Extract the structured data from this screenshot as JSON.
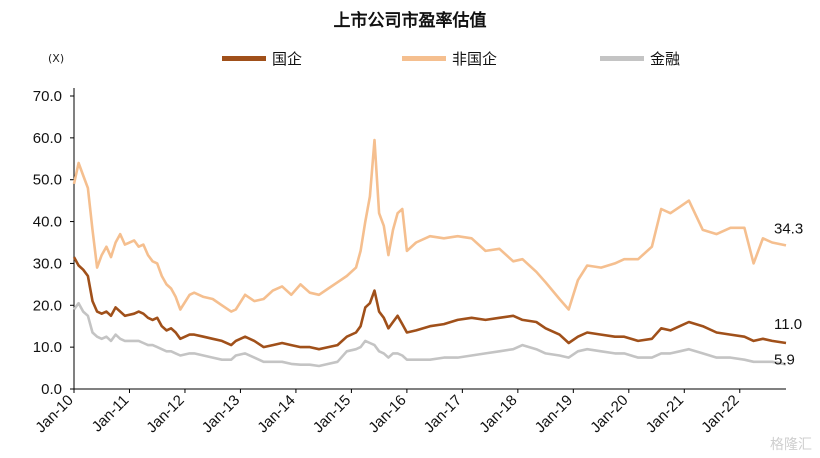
{
  "chart_data": {
    "type": "line",
    "title": "上市公司市盈率估值",
    "y_unit": "(X)",
    "ylim": [
      0,
      70
    ],
    "y_ticks": [
      "0.0",
      "10.0",
      "20.0",
      "30.0",
      "40.0",
      "50.0",
      "60.0",
      "70.0"
    ],
    "x_range": [
      "2010-01",
      "2022-11"
    ],
    "x_ticks": [
      "Jan-10",
      "Jan-11",
      "Jan-12",
      "Jan-13",
      "Jan-14",
      "Jan-15",
      "Jan-16",
      "Jan-17",
      "Jan-18",
      "Jan-19",
      "Jan-20",
      "Jan-21",
      "Jan-22"
    ],
    "legend_position": "top",
    "grid": false,
    "series": [
      {
        "name": "国企",
        "color": "#a0501a",
        "end_label": "11.0",
        "points": [
          [
            "2010-01",
            31.5
          ],
          [
            "2010-02",
            29.5
          ],
          [
            "2010-03",
            28.5
          ],
          [
            "2010-04",
            27.0
          ],
          [
            "2010-05",
            21.0
          ],
          [
            "2010-06",
            18.5
          ],
          [
            "2010-07",
            18.0
          ],
          [
            "2010-08",
            18.5
          ],
          [
            "2010-09",
            17.5
          ],
          [
            "2010-10",
            19.5
          ],
          [
            "2010-11",
            18.5
          ],
          [
            "2010-12",
            17.5
          ],
          [
            "2011-02",
            18.0
          ],
          [
            "2011-03",
            18.5
          ],
          [
            "2011-04",
            18.0
          ],
          [
            "2011-05",
            17.0
          ],
          [
            "2011-06",
            16.5
          ],
          [
            "2011-07",
            17.0
          ],
          [
            "2011-08",
            15.0
          ],
          [
            "2011-09",
            14.0
          ],
          [
            "2011-10",
            14.5
          ],
          [
            "2011-11",
            13.5
          ],
          [
            "2011-12",
            12.0
          ],
          [
            "2012-02",
            13.0
          ],
          [
            "2012-03",
            13.0
          ],
          [
            "2012-05",
            12.5
          ],
          [
            "2012-07",
            12.0
          ],
          [
            "2012-09",
            11.5
          ],
          [
            "2012-11",
            10.5
          ],
          [
            "2012-12",
            11.5
          ],
          [
            "2013-02",
            12.5
          ],
          [
            "2013-04",
            11.5
          ],
          [
            "2013-06",
            10.0
          ],
          [
            "2013-08",
            10.5
          ],
          [
            "2013-10",
            11.0
          ],
          [
            "2013-12",
            10.5
          ],
          [
            "2014-02",
            10.0
          ],
          [
            "2014-04",
            10.0
          ],
          [
            "2014-06",
            9.5
          ],
          [
            "2014-08",
            10.0
          ],
          [
            "2014-10",
            10.5
          ],
          [
            "2014-12",
            12.5
          ],
          [
            "2015-02",
            13.5
          ],
          [
            "2015-03",
            15.0
          ],
          [
            "2015-04",
            19.5
          ],
          [
            "2015-05",
            20.5
          ],
          [
            "2015-06",
            23.5
          ],
          [
            "2015-07",
            18.5
          ],
          [
            "2015-08",
            17.0
          ],
          [
            "2015-09",
            14.5
          ],
          [
            "2015-10",
            16.0
          ],
          [
            "2015-11",
            17.5
          ],
          [
            "2015-12",
            15.5
          ],
          [
            "2016-01",
            13.5
          ],
          [
            "2016-03",
            14.0
          ],
          [
            "2016-06",
            15.0
          ],
          [
            "2016-09",
            15.5
          ],
          [
            "2016-12",
            16.5
          ],
          [
            "2017-03",
            17.0
          ],
          [
            "2017-06",
            16.5
          ],
          [
            "2017-09",
            17.0
          ],
          [
            "2017-12",
            17.5
          ],
          [
            "2018-02",
            16.5
          ],
          [
            "2018-05",
            16.0
          ],
          [
            "2018-07",
            14.5
          ],
          [
            "2018-10",
            13.0
          ],
          [
            "2018-12",
            11.0
          ],
          [
            "2019-02",
            12.5
          ],
          [
            "2019-04",
            13.5
          ],
          [
            "2019-07",
            13.0
          ],
          [
            "2019-10",
            12.5
          ],
          [
            "2019-12",
            12.5
          ],
          [
            "2020-03",
            11.5
          ],
          [
            "2020-06",
            12.0
          ],
          [
            "2020-08",
            14.5
          ],
          [
            "2020-10",
            14.0
          ],
          [
            "2020-12",
            15.0
          ],
          [
            "2021-02",
            16.0
          ],
          [
            "2021-05",
            15.0
          ],
          [
            "2021-08",
            13.5
          ],
          [
            "2021-11",
            13.0
          ],
          [
            "2022-02",
            12.5
          ],
          [
            "2022-04",
            11.5
          ],
          [
            "2022-06",
            12.0
          ],
          [
            "2022-08",
            11.5
          ],
          [
            "2022-11",
            11.0
          ]
        ]
      },
      {
        "name": "非国企",
        "color": "#f5bf8f",
        "end_label": "34.3",
        "points": [
          [
            "2010-01",
            49.0
          ],
          [
            "2010-02",
            54.0
          ],
          [
            "2010-03",
            51.0
          ],
          [
            "2010-04",
            48.0
          ],
          [
            "2010-05",
            38.0
          ],
          [
            "2010-06",
            29.0
          ],
          [
            "2010-07",
            32.0
          ],
          [
            "2010-08",
            34.0
          ],
          [
            "2010-09",
            31.5
          ],
          [
            "2010-10",
            35.0
          ],
          [
            "2010-11",
            37.0
          ],
          [
            "2010-12",
            34.5
          ],
          [
            "2011-02",
            35.5
          ],
          [
            "2011-03",
            34.0
          ],
          [
            "2011-04",
            34.5
          ],
          [
            "2011-05",
            32.0
          ],
          [
            "2011-06",
            30.5
          ],
          [
            "2011-07",
            30.0
          ],
          [
            "2011-08",
            27.0
          ],
          [
            "2011-09",
            25.0
          ],
          [
            "2011-10",
            24.0
          ],
          [
            "2011-11",
            22.0
          ],
          [
            "2011-12",
            19.0
          ],
          [
            "2012-02",
            22.5
          ],
          [
            "2012-03",
            23.0
          ],
          [
            "2012-05",
            22.0
          ],
          [
            "2012-07",
            21.5
          ],
          [
            "2012-09",
            20.0
          ],
          [
            "2012-11",
            18.5
          ],
          [
            "2012-12",
            19.0
          ],
          [
            "2013-02",
            22.5
          ],
          [
            "2013-04",
            21.0
          ],
          [
            "2013-06",
            21.5
          ],
          [
            "2013-08",
            23.5
          ],
          [
            "2013-10",
            24.5
          ],
          [
            "2013-12",
            22.5
          ],
          [
            "2014-02",
            25.0
          ],
          [
            "2014-04",
            23.0
          ],
          [
            "2014-06",
            22.5
          ],
          [
            "2014-08",
            24.0
          ],
          [
            "2014-10",
            25.5
          ],
          [
            "2014-12",
            27.0
          ],
          [
            "2015-02",
            29.0
          ],
          [
            "2015-03",
            33.0
          ],
          [
            "2015-04",
            40.0
          ],
          [
            "2015-05",
            46.0
          ],
          [
            "2015-06",
            59.5
          ],
          [
            "2015-07",
            42.0
          ],
          [
            "2015-08",
            39.0
          ],
          [
            "2015-09",
            32.0
          ],
          [
            "2015-10",
            38.0
          ],
          [
            "2015-11",
            42.0
          ],
          [
            "2015-12",
            43.0
          ],
          [
            "2016-01",
            33.0
          ],
          [
            "2016-03",
            35.0
          ],
          [
            "2016-06",
            36.5
          ],
          [
            "2016-09",
            36.0
          ],
          [
            "2016-12",
            36.5
          ],
          [
            "2017-03",
            36.0
          ],
          [
            "2017-06",
            33.0
          ],
          [
            "2017-09",
            33.5
          ],
          [
            "2017-12",
            30.5
          ],
          [
            "2018-02",
            31.0
          ],
          [
            "2018-05",
            28.0
          ],
          [
            "2018-07",
            25.5
          ],
          [
            "2018-10",
            21.5
          ],
          [
            "2018-12",
            19.0
          ],
          [
            "2019-02",
            26.0
          ],
          [
            "2019-04",
            29.5
          ],
          [
            "2019-07",
            29.0
          ],
          [
            "2019-10",
            30.0
          ],
          [
            "2019-12",
            31.0
          ],
          [
            "2020-03",
            31.0
          ],
          [
            "2020-06",
            34.0
          ],
          [
            "2020-08",
            43.0
          ],
          [
            "2020-10",
            42.0
          ],
          [
            "2020-12",
            43.5
          ],
          [
            "2021-02",
            45.0
          ],
          [
            "2021-05",
            38.0
          ],
          [
            "2021-08",
            37.0
          ],
          [
            "2021-11",
            38.5
          ],
          [
            "2022-02",
            38.5
          ],
          [
            "2022-04",
            30.0
          ],
          [
            "2022-06",
            36.0
          ],
          [
            "2022-08",
            35.0
          ],
          [
            "2022-11",
            34.3
          ]
        ]
      },
      {
        "name": "金融",
        "color": "#c4c4c4",
        "end_label": "5.9",
        "points": [
          [
            "2010-01",
            19.0
          ],
          [
            "2010-02",
            20.5
          ],
          [
            "2010-03",
            18.5
          ],
          [
            "2010-04",
            17.5
          ],
          [
            "2010-05",
            13.5
          ],
          [
            "2010-06",
            12.5
          ],
          [
            "2010-07",
            12.0
          ],
          [
            "2010-08",
            12.5
          ],
          [
            "2010-09",
            11.5
          ],
          [
            "2010-10",
            13.0
          ],
          [
            "2010-11",
            12.0
          ],
          [
            "2010-12",
            11.5
          ],
          [
            "2011-02",
            11.5
          ],
          [
            "2011-03",
            11.5
          ],
          [
            "2011-04",
            11.0
          ],
          [
            "2011-05",
            10.5
          ],
          [
            "2011-06",
            10.5
          ],
          [
            "2011-07",
            10.0
          ],
          [
            "2011-08",
            9.5
          ],
          [
            "2011-09",
            9.0
          ],
          [
            "2011-10",
            9.0
          ],
          [
            "2011-11",
            8.5
          ],
          [
            "2011-12",
            8.0
          ],
          [
            "2012-02",
            8.5
          ],
          [
            "2012-03",
            8.5
          ],
          [
            "2012-05",
            8.0
          ],
          [
            "2012-07",
            7.5
          ],
          [
            "2012-09",
            7.0
          ],
          [
            "2012-11",
            7.0
          ],
          [
            "2012-12",
            8.0
          ],
          [
            "2013-02",
            8.5
          ],
          [
            "2013-04",
            7.5
          ],
          [
            "2013-06",
            6.5
          ],
          [
            "2013-08",
            6.5
          ],
          [
            "2013-10",
            6.5
          ],
          [
            "2013-12",
            6.0
          ],
          [
            "2014-02",
            5.8
          ],
          [
            "2014-04",
            5.8
          ],
          [
            "2014-06",
            5.5
          ],
          [
            "2014-08",
            6.0
          ],
          [
            "2014-10",
            6.5
          ],
          [
            "2014-12",
            9.0
          ],
          [
            "2015-02",
            9.5
          ],
          [
            "2015-03",
            10.0
          ],
          [
            "2015-04",
            11.5
          ],
          [
            "2015-05",
            11.0
          ],
          [
            "2015-06",
            10.5
          ],
          [
            "2015-07",
            9.0
          ],
          [
            "2015-08",
            8.5
          ],
          [
            "2015-09",
            7.5
          ],
          [
            "2015-10",
            8.5
          ],
          [
            "2015-11",
            8.5
          ],
          [
            "2015-12",
            8.0
          ],
          [
            "2016-01",
            7.0
          ],
          [
            "2016-03",
            7.0
          ],
          [
            "2016-06",
            7.0
          ],
          [
            "2016-09",
            7.5
          ],
          [
            "2016-12",
            7.5
          ],
          [
            "2017-03",
            8.0
          ],
          [
            "2017-06",
            8.5
          ],
          [
            "2017-09",
            9.0
          ],
          [
            "2017-12",
            9.5
          ],
          [
            "2018-02",
            10.5
          ],
          [
            "2018-05",
            9.5
          ],
          [
            "2018-07",
            8.5
          ],
          [
            "2018-10",
            8.0
          ],
          [
            "2018-12",
            7.5
          ],
          [
            "2019-02",
            9.0
          ],
          [
            "2019-04",
            9.5
          ],
          [
            "2019-07",
            9.0
          ],
          [
            "2019-10",
            8.5
          ],
          [
            "2019-12",
            8.5
          ],
          [
            "2020-03",
            7.5
          ],
          [
            "2020-06",
            7.5
          ],
          [
            "2020-08",
            8.5
          ],
          [
            "2020-10",
            8.5
          ],
          [
            "2020-12",
            9.0
          ],
          [
            "2021-02",
            9.5
          ],
          [
            "2021-05",
            8.5
          ],
          [
            "2021-08",
            7.5
          ],
          [
            "2021-11",
            7.5
          ],
          [
            "2022-02",
            7.0
          ],
          [
            "2022-04",
            6.5
          ],
          [
            "2022-06",
            6.5
          ],
          [
            "2022-08",
            6.5
          ],
          [
            "2022-11",
            5.9
          ]
        ]
      }
    ]
  },
  "watermark": "格隆汇"
}
